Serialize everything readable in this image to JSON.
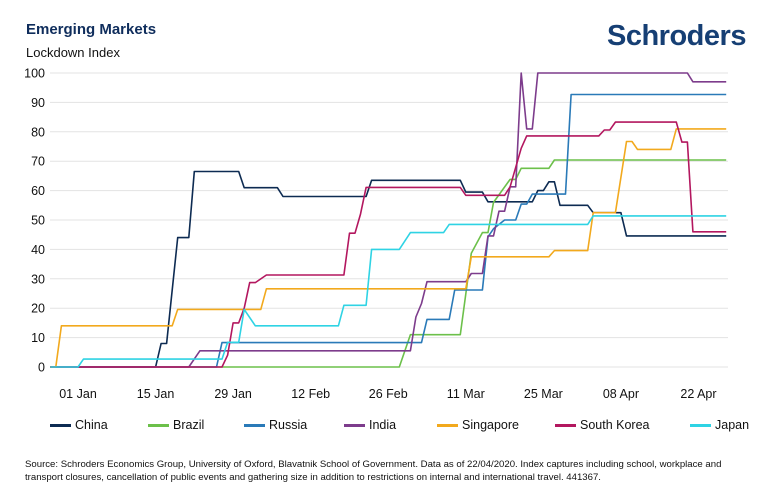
{
  "header": {
    "title": "Emerging Markets",
    "logo_text": "Schroders"
  },
  "footer": {
    "source": "Source: Schroders Economics Group, University of Oxford, Blavatnik School of Government. Data as of 22/04/2020. Index captures including school, workplace and transport closures, cancellation of public events and gathering size in addition to restrictions on internal and international travel. 441367."
  },
  "chart_data": {
    "type": "line",
    "title": "Emerging Markets",
    "ylabel": "Lockdown Index",
    "xlabel": "",
    "ylim": [
      0,
      100
    ],
    "yticks": [
      0,
      10,
      20,
      30,
      40,
      50,
      60,
      70,
      80,
      90,
      100
    ],
    "xtick_labels": [
      {
        "date": "2020-01-01",
        "label": "01 Jan"
      },
      {
        "date": "2020-01-15",
        "label": "15 Jan"
      },
      {
        "date": "2020-01-29",
        "label": "29 Jan"
      },
      {
        "date": "2020-02-12",
        "label": "12 Feb"
      },
      {
        "date": "2020-02-26",
        "label": "26 Feb"
      },
      {
        "date": "2020-03-11",
        "label": "11 Mar"
      },
      {
        "date": "2020-03-25",
        "label": "25 Mar"
      },
      {
        "date": "2020-04-08",
        "label": "08 Apr"
      },
      {
        "date": "2020-04-22",
        "label": "22 Apr"
      }
    ],
    "grid": "horizontal",
    "legend_position": "bottom",
    "series": [
      {
        "name": "China",
        "color": "#0d2b52",
        "points": [
          [
            "2019-12-27",
            0
          ],
          [
            "2020-01-15",
            0
          ],
          [
            "2020-01-16",
            8
          ],
          [
            "2020-01-17",
            8
          ],
          [
            "2020-01-19",
            44
          ],
          [
            "2020-01-21",
            44
          ],
          [
            "2020-01-22",
            66.5
          ],
          [
            "2020-01-30",
            66.5
          ],
          [
            "2020-01-31",
            61
          ],
          [
            "2020-02-06",
            61
          ],
          [
            "2020-02-07",
            58
          ],
          [
            "2020-02-22",
            58
          ],
          [
            "2020-02-23",
            63.5
          ],
          [
            "2020-03-10",
            63.5
          ],
          [
            "2020-03-11",
            59.5
          ],
          [
            "2020-03-14",
            59.5
          ],
          [
            "2020-03-15",
            56.2
          ],
          [
            "2020-03-23",
            56.2
          ],
          [
            "2020-03-24",
            60
          ],
          [
            "2020-03-25",
            60
          ],
          [
            "2020-03-26",
            63
          ],
          [
            "2020-03-27",
            63
          ],
          [
            "2020-03-28",
            55
          ],
          [
            "2020-04-02",
            55
          ],
          [
            "2020-04-03",
            52.5
          ],
          [
            "2020-04-08",
            52.5
          ],
          [
            "2020-04-09",
            44.6
          ],
          [
            "2020-04-27",
            44.6
          ]
        ]
      },
      {
        "name": "Brazil",
        "color": "#6cc04a",
        "points": [
          [
            "2019-12-27",
            0
          ],
          [
            "2020-02-28",
            0
          ],
          [
            "2020-03-01",
            11
          ],
          [
            "2020-03-10",
            11
          ],
          [
            "2020-03-12",
            38.7
          ],
          [
            "2020-03-14",
            45.7
          ],
          [
            "2020-03-15",
            45.7
          ],
          [
            "2020-03-16",
            56
          ],
          [
            "2020-03-19",
            63.8
          ],
          [
            "2020-03-20",
            63.8
          ],
          [
            "2020-03-21",
            67.6
          ],
          [
            "2020-03-26",
            67.6
          ],
          [
            "2020-03-27",
            70.4
          ],
          [
            "2020-04-27",
            70.4
          ]
        ]
      },
      {
        "name": "Russia",
        "color": "#2a7ab8",
        "points": [
          [
            "2019-12-27",
            0
          ],
          [
            "2020-01-26",
            0
          ],
          [
            "2020-01-27",
            8.3
          ],
          [
            "2020-03-03",
            8.3
          ],
          [
            "2020-03-04",
            16.2
          ],
          [
            "2020-03-08",
            16.2
          ],
          [
            "2020-03-09",
            26.2
          ],
          [
            "2020-03-14",
            26.2
          ],
          [
            "2020-03-15",
            44.3
          ],
          [
            "2020-03-16",
            47
          ],
          [
            "2020-03-18",
            50
          ],
          [
            "2020-03-20",
            50
          ],
          [
            "2020-03-21",
            55.4
          ],
          [
            "2020-03-22",
            55.4
          ],
          [
            "2020-03-23",
            58.8
          ],
          [
            "2020-03-29",
            58.8
          ],
          [
            "2020-03-30",
            92.7
          ],
          [
            "2020-04-27",
            92.7
          ]
        ]
      },
      {
        "name": "India",
        "color": "#7d3c8c",
        "points": [
          [
            "2019-12-27",
            0
          ],
          [
            "2020-01-21",
            0
          ],
          [
            "2020-01-23",
            5.5
          ],
          [
            "2020-03-01",
            5.5
          ],
          [
            "2020-03-02",
            17
          ],
          [
            "2020-03-03",
            21.6
          ],
          [
            "2020-03-04",
            29
          ],
          [
            "2020-03-11",
            29
          ],
          [
            "2020-03-12",
            31.8
          ],
          [
            "2020-03-14",
            31.8
          ],
          [
            "2020-03-15",
            44.6
          ],
          [
            "2020-03-16",
            44.6
          ],
          [
            "2020-03-17",
            53
          ],
          [
            "2020-03-18",
            53
          ],
          [
            "2020-03-19",
            61.3
          ],
          [
            "2020-03-20",
            61.3
          ],
          [
            "2020-03-21",
            100
          ],
          [
            "2020-03-22",
            81
          ],
          [
            "2020-03-23",
            81
          ],
          [
            "2020-03-24",
            100
          ],
          [
            "2020-04-20",
            100
          ],
          [
            "2020-04-21",
            97
          ],
          [
            "2020-04-27",
            97
          ]
        ]
      },
      {
        "name": "Singapore",
        "color": "#f2a91d",
        "points": [
          [
            "2019-12-27",
            0
          ],
          [
            "2019-12-28",
            0
          ],
          [
            "2019-12-29",
            14
          ],
          [
            "2020-01-18",
            14
          ],
          [
            "2020-01-19",
            19.6
          ],
          [
            "2020-02-03",
            19.6
          ],
          [
            "2020-02-04",
            26.6
          ],
          [
            "2020-03-11",
            26.6
          ],
          [
            "2020-03-12",
            37.5
          ],
          [
            "2020-03-26",
            37.5
          ],
          [
            "2020-03-27",
            39.6
          ],
          [
            "2020-04-02",
            39.6
          ],
          [
            "2020-04-03",
            52.5
          ],
          [
            "2020-04-07",
            52.5
          ],
          [
            "2020-04-09",
            76.7
          ],
          [
            "2020-04-10",
            76.7
          ],
          [
            "2020-04-11",
            74
          ],
          [
            "2020-04-17",
            74
          ],
          [
            "2020-04-18",
            81
          ],
          [
            "2020-04-27",
            81
          ]
        ]
      },
      {
        "name": "South Korea",
        "color": "#b3175f",
        "points": [
          [
            "2019-12-27",
            0
          ],
          [
            "2020-01-27",
            0
          ],
          [
            "2020-01-28",
            4
          ],
          [
            "2020-01-29",
            15
          ],
          [
            "2020-01-30",
            15
          ],
          [
            "2020-01-31",
            20
          ],
          [
            "2020-02-01",
            28.7
          ],
          [
            "2020-02-02",
            28.7
          ],
          [
            "2020-02-04",
            31.3
          ],
          [
            "2020-02-18",
            31.3
          ],
          [
            "2020-02-19",
            45.5
          ],
          [
            "2020-02-20",
            45.5
          ],
          [
            "2020-02-21",
            52
          ],
          [
            "2020-02-22",
            61.1
          ],
          [
            "2020-03-10",
            61.1
          ],
          [
            "2020-03-11",
            58.4
          ],
          [
            "2020-03-18",
            58.4
          ],
          [
            "2020-03-19",
            61.3
          ],
          [
            "2020-03-21",
            74.4
          ],
          [
            "2020-03-22",
            78.6
          ],
          [
            "2020-04-04",
            78.6
          ],
          [
            "2020-04-05",
            80.6
          ],
          [
            "2020-04-06",
            80.6
          ],
          [
            "2020-04-07",
            83.3
          ],
          [
            "2020-04-18",
            83.3
          ],
          [
            "2020-04-19",
            76.5
          ],
          [
            "2020-04-20",
            76.5
          ],
          [
            "2020-04-21",
            46
          ],
          [
            "2020-04-27",
            46
          ]
        ]
      },
      {
        "name": "Japan",
        "color": "#2fd3e4",
        "points": [
          [
            "2019-12-27",
            0
          ],
          [
            "2020-01-01",
            0
          ],
          [
            "2020-01-02",
            2.7
          ],
          [
            "2020-01-27",
            2.7
          ],
          [
            "2020-01-28",
            8.4
          ],
          [
            "2020-01-30",
            8.4
          ],
          [
            "2020-01-31",
            19.6
          ],
          [
            "2020-02-02",
            14
          ],
          [
            "2020-02-17",
            14
          ],
          [
            "2020-02-18",
            21
          ],
          [
            "2020-02-22",
            21
          ],
          [
            "2020-02-23",
            40
          ],
          [
            "2020-02-28",
            40
          ],
          [
            "2020-03-01",
            45.7
          ],
          [
            "2020-03-07",
            45.7
          ],
          [
            "2020-03-08",
            48.5
          ],
          [
            "2020-04-02",
            48.5
          ],
          [
            "2020-04-03",
            51.4
          ],
          [
            "2020-04-27",
            51.4
          ]
        ]
      }
    ]
  }
}
